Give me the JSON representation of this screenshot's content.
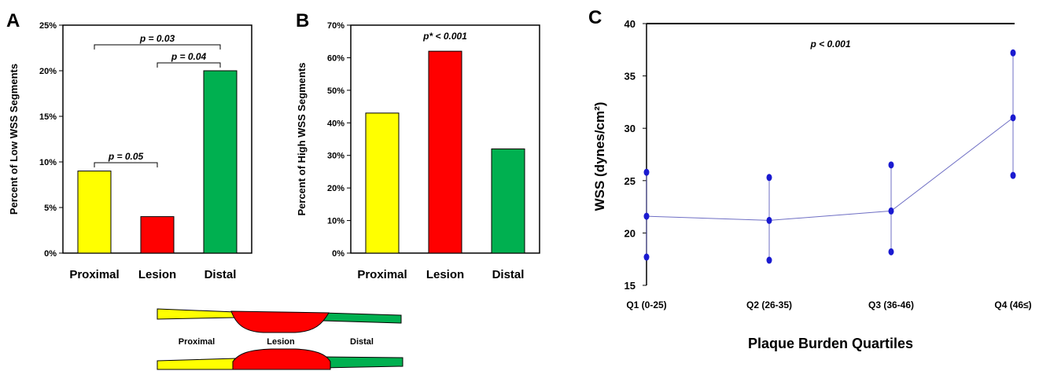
{
  "chart_data": [
    {
      "panel": "A",
      "type": "bar",
      "categories": [
        "Proximal",
        "Lesion",
        "Distal"
      ],
      "values": [
        9,
        4,
        20
      ],
      "colors": [
        "#ffff00",
        "#ff0000",
        "#00b050"
      ],
      "ylabel": "Percent of Low WSS Segments",
      "ylim": [
        0,
        25
      ],
      "yticks": [
        "0%",
        "5%",
        "10%",
        "15%",
        "20%",
        "25%"
      ],
      "annotations": [
        {
          "text": "p = 0.03",
          "from": "Proximal",
          "to": "Distal"
        },
        {
          "text": "p = 0.04",
          "from": "Lesion",
          "to": "Distal"
        },
        {
          "text": "p = 0.05",
          "from": "Proximal",
          "to": "Lesion"
        }
      ]
    },
    {
      "panel": "B",
      "type": "bar",
      "categories": [
        "Proximal",
        "Lesion",
        "Distal"
      ],
      "values": [
        43,
        62,
        32
      ],
      "colors": [
        "#ffff00",
        "#ff0000",
        "#00b050"
      ],
      "ylabel": "Percent of High WSS Segments",
      "ylim": [
        0,
        70
      ],
      "yticks": [
        "0%",
        "10%",
        "20%",
        "30%",
        "40%",
        "50%",
        "60%",
        "70%"
      ],
      "annotations": [
        {
          "text": "p* < 0.001"
        }
      ]
    },
    {
      "panel": "C",
      "type": "line",
      "categories": [
        "Q1 (0-25)",
        "Q2 (26-35)",
        "Q3 (36-46)",
        "Q4 (46≤)"
      ],
      "series": [
        {
          "values": [
            21.6,
            21.2,
            22.1,
            31.0
          ],
          "lower": [
            17.7,
            17.4,
            18.2,
            25.5
          ],
          "upper": [
            25.8,
            25.3,
            26.5,
            37.2
          ]
        }
      ],
      "xlabel": "Plaque Burden Quartiles",
      "ylabel": "WSS (dynes/cm²)",
      "ylim": [
        15,
        40
      ],
      "yticks": [
        "15",
        "20",
        "25",
        "30",
        "35",
        "40"
      ],
      "annotations": [
        {
          "text": "p < 0.001"
        }
      ],
      "line_color": "#6f6fc4",
      "marker_color": "#1a1ad0"
    }
  ],
  "panels": {
    "a": "A",
    "b": "B",
    "c": "C"
  },
  "diagram": {
    "labels": [
      "Proximal",
      "Lesion",
      "Distal"
    ]
  }
}
